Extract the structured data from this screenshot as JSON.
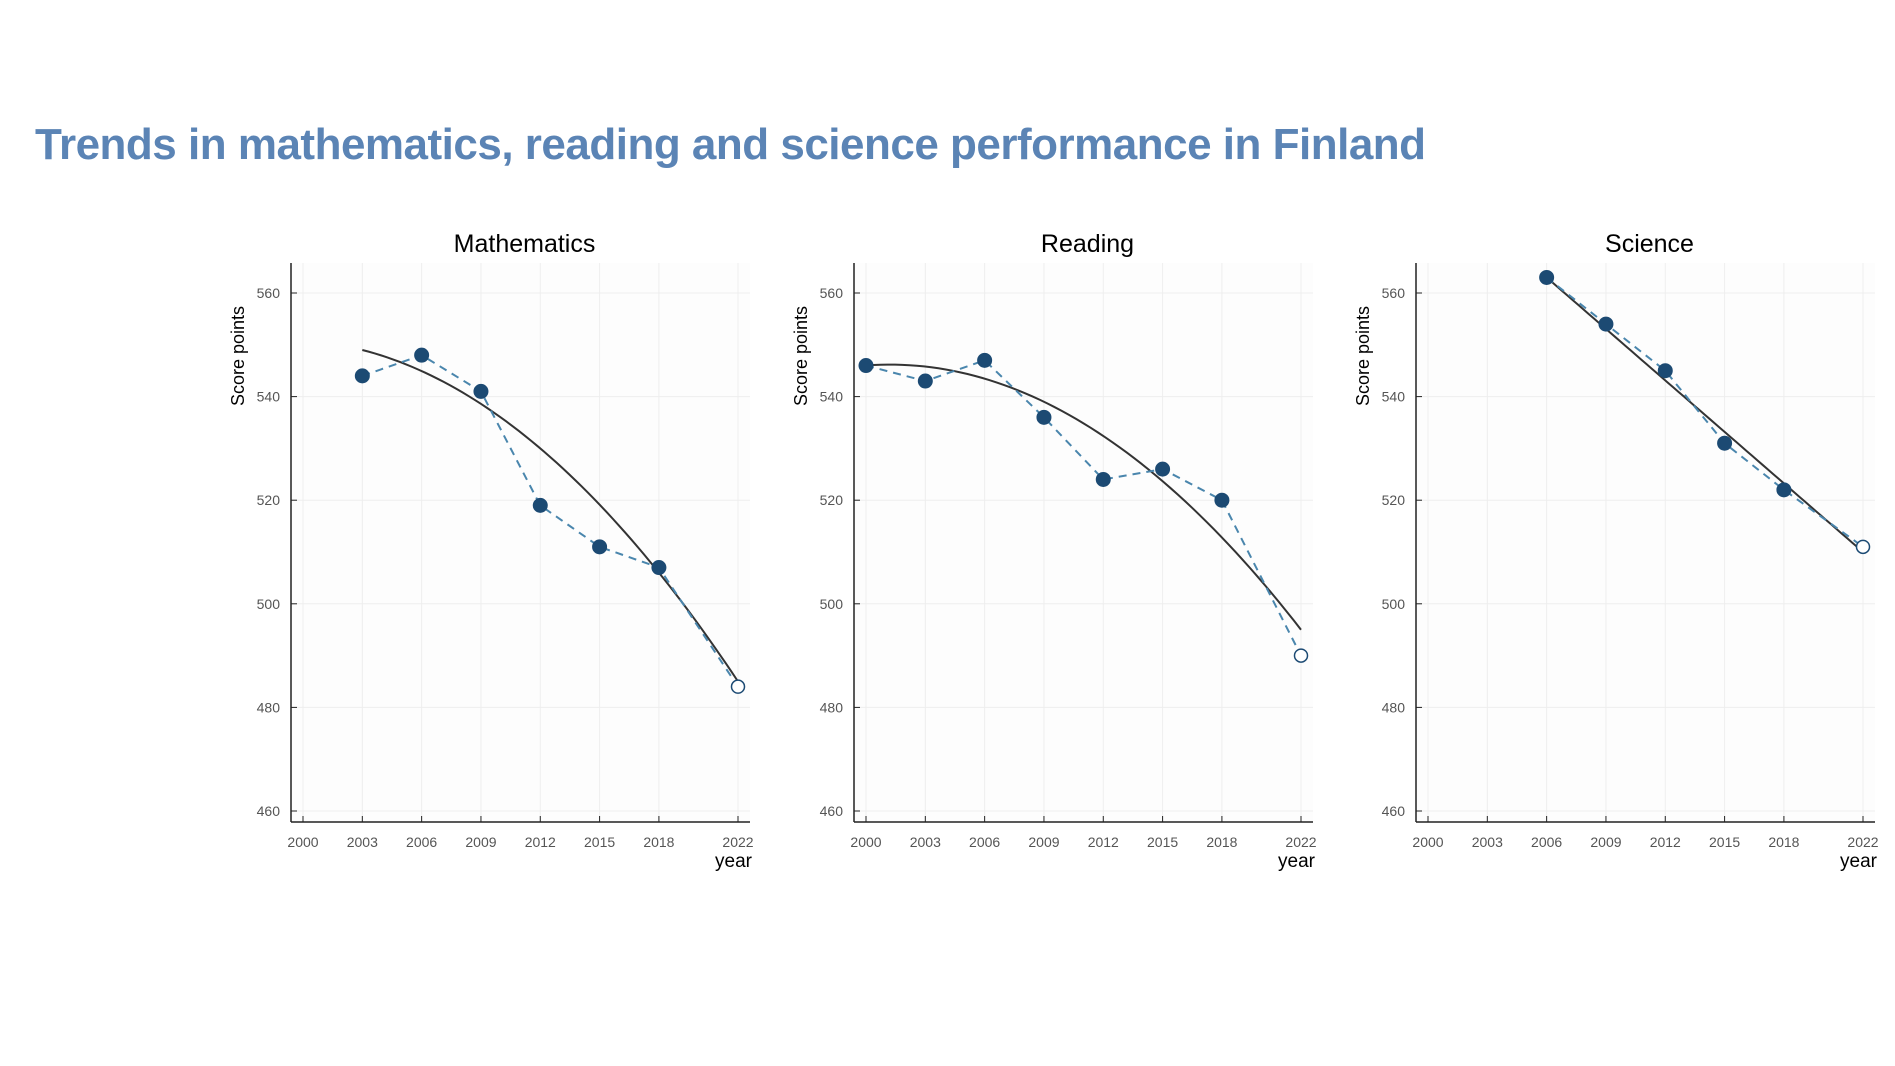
{
  "page_title": "Trends in mathematics, reading and science performance in Finland",
  "colors": {
    "title": "#5b84b5",
    "marker": "#1c4a73",
    "connector": "#4a86ad",
    "trend": "#333333",
    "axis": "#222222",
    "grid": "#eeeeee"
  },
  "chart_data": [
    {
      "type": "line",
      "title": "Mathematics",
      "xlabel": "year",
      "ylabel": "Score points",
      "xlim": [
        2000,
        2022
      ],
      "ylim": [
        460,
        560
      ],
      "x_ticks": [
        "2000",
        "2003",
        "2006",
        "2009",
        "2012",
        "2015",
        "2018",
        "2022"
      ],
      "y_ticks": [
        "460",
        "480",
        "500",
        "520",
        "540",
        "560"
      ],
      "grid": true,
      "series": [
        {
          "x": [
            2003,
            2006,
            2009,
            2012,
            2015,
            2018,
            2022
          ],
          "y": [
            544,
            548,
            541,
            519,
            511,
            507,
            484
          ],
          "hollow_last": true
        }
      ],
      "trend": {
        "type": "quadratic",
        "x_start": 2003,
        "x_end": 2022,
        "points": [
          [
            2003,
            549
          ],
          [
            2012,
            530
          ],
          [
            2022,
            485
          ]
        ]
      }
    },
    {
      "type": "line",
      "title": "Reading",
      "xlabel": "year",
      "ylabel": "Score points",
      "xlim": [
        2000,
        2022
      ],
      "ylim": [
        460,
        560
      ],
      "x_ticks": [
        "2000",
        "2003",
        "2006",
        "2009",
        "2012",
        "2015",
        "2018",
        "2022"
      ],
      "y_ticks": [
        "460",
        "480",
        "500",
        "520",
        "540",
        "560"
      ],
      "grid": true,
      "series": [
        {
          "x": [
            2000,
            2003,
            2006,
            2009,
            2012,
            2015,
            2018,
            2022
          ],
          "y": [
            546,
            543,
            547,
            536,
            524,
            526,
            520,
            490
          ],
          "hollow_last": true
        }
      ],
      "trend": {
        "type": "quadratic",
        "x_start": 2000,
        "x_end": 2022,
        "points": [
          [
            2000,
            546
          ],
          [
            2009,
            539
          ],
          [
            2022,
            495
          ]
        ]
      }
    },
    {
      "type": "line",
      "title": "Science",
      "xlabel": "year",
      "ylabel": "Score points",
      "xlim": [
        2000,
        2022
      ],
      "ylim": [
        460,
        560
      ],
      "x_ticks": [
        "2000",
        "2003",
        "2006",
        "2009",
        "2012",
        "2015",
        "2018",
        "2022"
      ],
      "y_ticks": [
        "460",
        "480",
        "500",
        "520",
        "540",
        "560"
      ],
      "grid": true,
      "series": [
        {
          "x": [
            2006,
            2009,
            2012,
            2015,
            2018,
            2022
          ],
          "y": [
            563,
            554,
            545,
            531,
            522,
            511
          ],
          "hollow_last": true
        }
      ],
      "trend": {
        "type": "linear",
        "x_start": 2006,
        "x_end": 2022,
        "points": [
          [
            2006,
            563
          ],
          [
            2014,
            537
          ],
          [
            2022,
            510
          ]
        ]
      }
    }
  ]
}
